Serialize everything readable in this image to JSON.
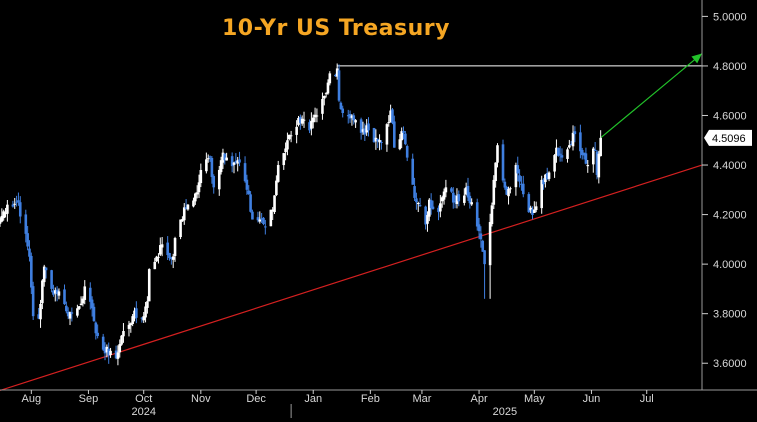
{
  "chart_data": {
    "type": "candlestick",
    "title": "10-Yr US Treasury",
    "xlabel": "",
    "ylabel": "",
    "ylim": [
      3.5,
      5.05
    ],
    "x_range": [
      "2024-07-15",
      "2025-07-31"
    ],
    "y_ticks": [
      "3.6000",
      "3.8000",
      "4.0000",
      "4.2000",
      "4.4000",
      "4.6000",
      "4.8000",
      "5.0000"
    ],
    "x_ticks": [
      {
        "label": "Aug",
        "date": "2024-08-01"
      },
      {
        "label": "Sep",
        "date": "2024-09-01"
      },
      {
        "label": "Oct",
        "date": "2024-10-01"
      },
      {
        "label": "Nov",
        "date": "2024-11-01"
      },
      {
        "label": "Dec",
        "date": "2024-12-01"
      },
      {
        "label": "Jan",
        "date": "2025-01-01"
      },
      {
        "label": "Feb",
        "date": "2025-02-01"
      },
      {
        "label": "Mar",
        "date": "2025-03-01"
      },
      {
        "label": "Apr",
        "date": "2025-04-01"
      },
      {
        "label": "May",
        "date": "2025-05-01"
      },
      {
        "label": "Jun",
        "date": "2025-06-01"
      },
      {
        "label": "Jul",
        "date": "2025-07-01"
      }
    ],
    "year_labels": [
      {
        "label": "2024",
        "date": "2024-10-01"
      },
      {
        "label": "2025",
        "date": "2025-04-15"
      }
    ],
    "last_value": "4.5096",
    "colors": {
      "up": "#ffffff",
      "down": "#3f7fe0",
      "trendline": "#d42020",
      "resistance": "#ffffff",
      "projection": "#22c22a",
      "title": "#f5a623",
      "last_label_bg": "#ffffff",
      "background": "#000000"
    },
    "daily_close": [
      [
        "2024-07-15",
        4.18
      ],
      [
        "2024-07-19",
        4.24
      ],
      [
        "2024-07-25",
        4.25
      ],
      [
        "2024-07-31",
        4.03
      ],
      [
        "2024-08-02",
        3.79
      ],
      [
        "2024-08-05",
        3.78
      ],
      [
        "2024-08-08",
        3.99
      ],
      [
        "2024-08-12",
        3.9
      ],
      [
        "2024-08-16",
        3.89
      ],
      [
        "2024-08-20",
        3.81
      ],
      [
        "2024-08-23",
        3.8
      ],
      [
        "2024-08-27",
        3.83
      ],
      [
        "2024-08-30",
        3.91
      ],
      [
        "2024-09-04",
        3.77
      ],
      [
        "2024-09-06",
        3.71
      ],
      [
        "2024-09-10",
        3.64
      ],
      [
        "2024-09-13",
        3.65
      ],
      [
        "2024-09-16",
        3.62
      ],
      [
        "2024-09-20",
        3.73
      ],
      [
        "2024-09-25",
        3.79
      ],
      [
        "2024-09-30",
        3.78
      ],
      [
        "2024-10-03",
        3.85
      ],
      [
        "2024-10-04",
        3.98
      ],
      [
        "2024-10-08",
        4.03
      ],
      [
        "2024-10-11",
        4.08
      ],
      [
        "2024-10-16",
        4.02
      ],
      [
        "2024-10-21",
        4.18
      ],
      [
        "2024-10-25",
        4.24
      ],
      [
        "2024-10-30",
        4.29
      ],
      [
        "2024-11-01",
        4.38
      ],
      [
        "2024-11-06",
        4.43
      ],
      [
        "2024-11-08",
        4.31
      ],
      [
        "2024-11-13",
        4.45
      ],
      [
        "2024-11-15",
        4.43
      ],
      [
        "2024-11-20",
        4.41
      ],
      [
        "2024-11-22",
        4.41
      ],
      [
        "2024-11-26",
        4.3
      ],
      [
        "2024-11-29",
        4.18
      ],
      [
        "2024-12-04",
        4.18
      ],
      [
        "2024-12-06",
        4.15
      ],
      [
        "2024-12-10",
        4.22
      ],
      [
        "2024-12-13",
        4.4
      ],
      [
        "2024-12-18",
        4.5
      ],
      [
        "2024-12-20",
        4.52
      ],
      [
        "2024-12-24",
        4.59
      ],
      [
        "2024-12-30",
        4.54
      ],
      [
        "2025-01-03",
        4.6
      ],
      [
        "2025-01-08",
        4.69
      ],
      [
        "2025-01-10",
        4.77
      ],
      [
        "2025-01-14",
        4.79
      ],
      [
        "2025-01-15",
        4.66
      ],
      [
        "2025-01-17",
        4.61
      ],
      [
        "2025-01-22",
        4.6
      ],
      [
        "2025-01-27",
        4.53
      ],
      [
        "2025-01-31",
        4.54
      ],
      [
        "2025-02-04",
        4.51
      ],
      [
        "2025-02-07",
        4.49
      ],
      [
        "2025-02-12",
        4.62
      ],
      [
        "2025-02-14",
        4.47
      ],
      [
        "2025-02-19",
        4.53
      ],
      [
        "2025-02-21",
        4.43
      ],
      [
        "2025-02-26",
        4.25
      ],
      [
        "2025-03-03",
        4.16
      ],
      [
        "2025-03-05",
        4.26
      ],
      [
        "2025-03-10",
        4.21
      ],
      [
        "2025-03-14",
        4.31
      ],
      [
        "2025-03-19",
        4.25
      ],
      [
        "2025-03-25",
        4.31
      ],
      [
        "2025-03-28",
        4.25
      ],
      [
        "2025-04-03",
        4.05
      ],
      [
        "2025-04-04",
        4.0
      ],
      [
        "2025-04-07",
        4.17
      ],
      [
        "2025-04-09",
        4.34
      ],
      [
        "2025-04-11",
        4.48
      ],
      [
        "2025-04-16",
        4.28
      ],
      [
        "2025-04-21",
        4.4
      ],
      [
        "2025-04-24",
        4.32
      ],
      [
        "2025-04-28",
        4.21
      ],
      [
        "2025-05-01",
        4.22
      ],
      [
        "2025-05-05",
        4.34
      ],
      [
        "2025-05-09",
        4.37
      ],
      [
        "2025-05-13",
        4.47
      ],
      [
        "2025-05-16",
        4.43
      ],
      [
        "2025-05-20",
        4.48
      ],
      [
        "2025-05-22",
        4.53
      ],
      [
        "2025-05-27",
        4.44
      ],
      [
        "2025-05-30",
        4.4
      ],
      [
        "2025-06-03",
        4.46
      ],
      [
        "2025-06-04",
        4.36
      ],
      [
        "2025-06-06",
        4.5096
      ]
    ],
    "annotations": [
      {
        "type": "trendline",
        "from": [
          "2024-07-15",
          3.49
        ],
        "to": [
          "2025-07-31",
          4.4
        ]
      },
      {
        "type": "resistance",
        "from": [
          "2025-01-14",
          4.8
        ],
        "to": [
          "2025-07-31",
          4.8
        ]
      },
      {
        "type": "projection_arrow",
        "from": [
          "2025-06-06",
          4.51
        ],
        "to": [
          "2025-07-31",
          4.85
        ]
      }
    ]
  }
}
